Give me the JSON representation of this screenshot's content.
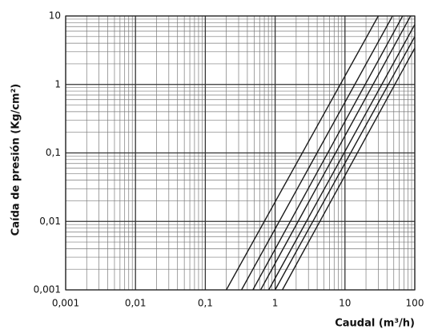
{
  "chart_data": {
    "type": "line",
    "x_label": "Caudal (m³/h)",
    "y_label": "Caída de presión (Kg/cm²)",
    "log_x": true,
    "log_y": true,
    "grid": true,
    "minor_grid": true,
    "xlim": [
      0.001,
      100
    ],
    "xticks": [
      {
        "value": 0.001,
        "label": "0,001"
      },
      {
        "value": 0.01,
        "label": "0,01"
      },
      {
        "value": 0.1,
        "label": "0,1"
      },
      1,
      10,
      100
    ],
    "ylim": [
      0.001,
      10
    ],
    "yticks": [
      {
        "value": 0.001,
        "label": "0,001"
      },
      {
        "value": 0.01,
        "label": "0,01"
      },
      {
        "value": 0.1,
        "label": "0,1"
      },
      1,
      10
    ],
    "series": [
      {
        "color": "#1a1a1a",
        "x": [
          0.2,
          30
        ],
        "values": [
          0.001,
          10
        ]
      },
      {
        "color": "#1a1a1a",
        "x": [
          0.33,
          48
        ],
        "values": [
          0.001,
          10
        ]
      },
      {
        "color": "#1a1a1a",
        "x": [
          0.48,
          67
        ],
        "values": [
          0.001,
          10
        ]
      },
      {
        "color": "#1a1a1a",
        "x": [
          0.62,
          87
        ],
        "values": [
          0.001,
          10
        ]
      },
      {
        "color": "#1a1a1a",
        "x": [
          0.81,
          100
        ],
        "values": [
          0.001,
          7.5
        ]
      },
      {
        "color": "#1a1a1a",
        "x": [
          1.0,
          100
        ],
        "values": [
          0.001,
          5
        ]
      },
      {
        "color": "#1a1a1a",
        "x": [
          1.27,
          100
        ],
        "values": [
          0.001,
          3.4
        ]
      }
    ]
  }
}
